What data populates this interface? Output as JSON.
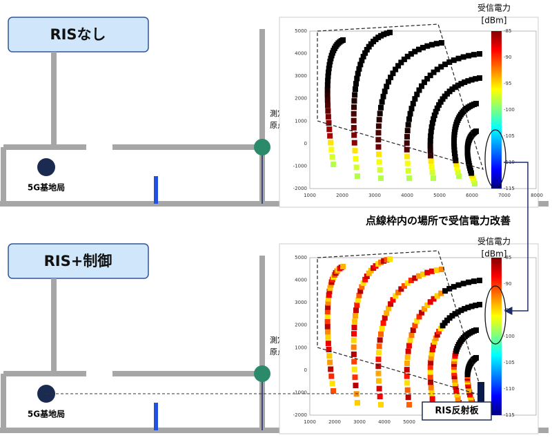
{
  "top_panel": {
    "label": "RISなし",
    "base_station": "5G基地局",
    "origin": [
      "測定",
      "原点"
    ],
    "colorbar_title": [
      "受信電力",
      "[dBm]"
    ],
    "colorbar_ticks": [
      -85,
      -90,
      -95,
      -100,
      -105,
      -110,
      -115
    ],
    "x_ticks": [
      1000,
      2000,
      3000,
      4000,
      5000,
      6000,
      7000,
      8000
    ],
    "y_ticks": [
      5000,
      4000,
      3000,
      2000,
      1000,
      0,
      -1000,
      -2000
    ]
  },
  "caption": "点線枠内の場所で受信電力改善",
  "bottom_panel": {
    "label": "RIS+制御",
    "base_station": "5G基地局",
    "origin": [
      "測定",
      "原点"
    ],
    "colorbar_title": [
      "受信電力",
      "[dBm]"
    ],
    "colorbar_ticks": [
      -85,
      -90,
      -95,
      -100,
      -105,
      -110,
      -115
    ],
    "x_ticks": [
      1000,
      2000,
      3000,
      4000,
      5000
    ],
    "y_ticks": [
      5000,
      4000,
      3000,
      2000,
      1000,
      0,
      -1000,
      -2000
    ],
    "reflector": "RIS反射板"
  }
}
